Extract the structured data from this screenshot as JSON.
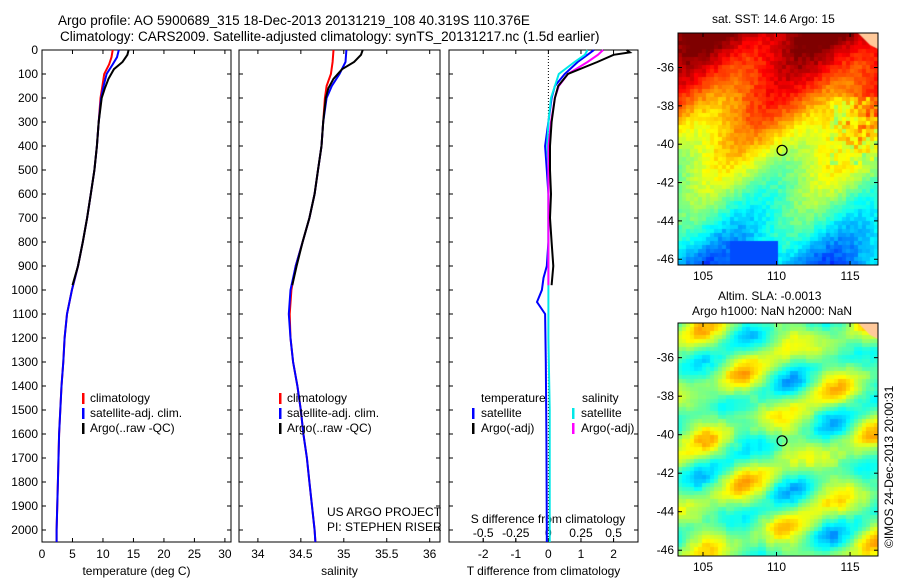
{
  "chart_data": {
    "title_line1": "Argo profile: AO 5900689_315 18-Dec-2013 20131219_108 40.319S 110.376E",
    "title_line2": "Climatology: CARS2009. Satellite-adjusted climatology: synTS_20131217.nc (1.5d earlier)",
    "depth_ticks": [
      0,
      100,
      200,
      300,
      400,
      500,
      600,
      700,
      800,
      900,
      1000,
      1100,
      1200,
      1300,
      1400,
      1500,
      1600,
      1700,
      1800,
      1900,
      2000
    ],
    "ylim": [
      0,
      2050
    ],
    "panels": [
      {
        "type": "line",
        "xlabel": "temperature (deg C)",
        "xlim": [
          0,
          31
        ],
        "xticks": [
          0,
          5,
          10,
          15,
          20,
          25,
          30
        ],
        "legend": [
          "climatology",
          "satellite-adj. clim.",
          "Argo(..raw -QC)"
        ],
        "series": [
          {
            "name": "climatology",
            "color": "#ff0000",
            "depth": [
              0,
              30,
              60,
              100,
              150,
              200,
              300,
              400,
              500,
              600,
              700,
              800,
              900,
              1000,
              1100,
              1200,
              1300,
              1400,
              1600,
              1800,
              2000,
              2050
            ],
            "values": [
              11.6,
              11.4,
              11.0,
              10.2,
              9.9,
              9.6,
              9.3,
              9.0,
              8.6,
              8.0,
              7.4,
              6.7,
              5.9,
              4.9,
              4.1,
              3.7,
              3.5,
              3.2,
              2.8,
              2.6,
              2.4,
              2.4
            ]
          },
          {
            "name": "satellite-adj. clim.",
            "color": "#0000ff",
            "depth": [
              0,
              30,
              60,
              100,
              150,
              200,
              300,
              400,
              500,
              600,
              700,
              800,
              900,
              1000,
              1100,
              1200,
              1300,
              1400,
              1600,
              1800,
              2000,
              2050
            ],
            "values": [
              12.6,
              12.3,
              11.6,
              10.6,
              10.1,
              9.7,
              9.3,
              9.0,
              8.6,
              8.0,
              7.4,
              6.7,
              5.9,
              4.9,
              4.1,
              3.7,
              3.5,
              3.2,
              2.8,
              2.6,
              2.4,
              2.4
            ]
          },
          {
            "name": "Argo(..raw -QC)",
            "color": "#000000",
            "depth": [
              0,
              20,
              50,
              80,
              120,
              160,
              200,
              300,
              400,
              500,
              600,
              700,
              800,
              900,
              980
            ],
            "values": [
              14.2,
              14.0,
              13.2,
              11.8,
              10.9,
              10.3,
              9.8,
              9.3,
              9.0,
              8.6,
              8.0,
              7.4,
              6.7,
              5.9,
              5.0
            ]
          }
        ]
      },
      {
        "type": "line",
        "xlabel": "salinity",
        "xlim": [
          33.78,
          36.12
        ],
        "xticks": [
          34,
          34.5,
          35,
          35.5,
          36
        ],
        "legend": [
          "climatology",
          "satellite-adj. clim.",
          "Argo(..raw -QC)"
        ],
        "annotation": [
          "US ARGO PROJECT",
          "PI: STEPHEN RISER"
        ],
        "series": [
          {
            "name": "climatology",
            "color": "#ff0000",
            "depth": [
              0,
              50,
              100,
              150,
              200,
              300,
              400,
              500,
              600,
              700,
              800,
              900,
              1000,
              1100,
              1200,
              1300,
              1400,
              1500,
              1600,
              1700,
              1800,
              1900,
              2000,
              2050
            ],
            "values": [
              34.88,
              34.87,
              34.85,
              34.8,
              34.78,
              34.76,
              34.74,
              34.7,
              34.66,
              34.6,
              34.52,
              34.44,
              34.39,
              34.37,
              34.38,
              34.41,
              34.46,
              34.5,
              34.53,
              34.57,
              34.6,
              34.63,
              34.66,
              34.67
            ]
          },
          {
            "name": "satellite-adj. clim.",
            "color": "#0000ff",
            "depth": [
              0,
              50,
              100,
              150,
              200,
              300,
              400,
              500,
              600,
              700,
              800,
              900,
              1000,
              1100,
              1200,
              1300,
              1400,
              1500,
              1600,
              1700,
              1800,
              1900,
              2000,
              2050
            ],
            "values": [
              35.03,
              35.02,
              34.95,
              34.86,
              34.8,
              34.76,
              34.74,
              34.7,
              34.66,
              34.6,
              34.52,
              34.44,
              34.38,
              34.36,
              34.38,
              34.41,
              34.46,
              34.5,
              34.53,
              34.57,
              34.6,
              34.63,
              34.66,
              34.67
            ]
          },
          {
            "name": "Argo(..raw -QC)",
            "color": "#000000",
            "depth": [
              0,
              20,
              50,
              80,
              120,
              160,
              200,
              300,
              400,
              500,
              600,
              700,
              800,
              900,
              980
            ],
            "values": [
              35.22,
              35.2,
              35.12,
              34.98,
              34.88,
              34.82,
              34.79,
              34.76,
              34.74,
              34.7,
              34.66,
              34.6,
              34.52,
              34.45,
              34.4
            ]
          }
        ]
      },
      {
        "type": "line",
        "xlabel": "T difference from climatology",
        "xlim": [
          -3.05,
          2.75
        ],
        "xticks": [
          -2,
          -1,
          0,
          1,
          2
        ],
        "s_label": "S difference from climatology",
        "s_ticks": [
          -0.5,
          -0.25,
          0,
          0.25,
          0.5
        ],
        "legend_headers": [
          "temperature",
          "salinity"
        ],
        "legend": [
          "satellite",
          "Argo(-adj)",
          "satellite",
          "Argo(-adj)"
        ],
        "series": [
          {
            "name": "T satellite",
            "unit": "T",
            "color": "#0000ff",
            "depth": [
              0,
              20,
              50,
              100,
              150,
              200,
              300,
              400,
              500,
              600,
              700,
              800,
              900,
              950,
              1000,
              1050,
              1100,
              1300,
              1600,
              2000,
              2050
            ],
            "values": [
              1.4,
              1.2,
              0.9,
              0.5,
              0.2,
              0.1,
              0.0,
              -0.1,
              -0.05,
              0,
              0,
              0,
              -0.05,
              -0.15,
              -0.2,
              -0.35,
              -0.1,
              -0.08,
              -0.06,
              -0.05,
              -0.05
            ]
          },
          {
            "name": "S satellite",
            "unit": "S",
            "color": "#00e8e8",
            "depth": [
              0,
              20,
              50,
              100,
              150,
              200,
              300,
              400,
              500,
              600,
              800,
              1000,
              1200,
              1500,
              1800,
              2000,
              2050
            ],
            "values": [
              0.3,
              0.28,
              0.2,
              0.08,
              0.05,
              0.02,
              0.0,
              -0.01,
              0,
              0,
              0,
              0,
              0,
              0.01,
              0.01,
              0.01,
              0.01
            ]
          },
          {
            "name": "S Argo(-adj)",
            "unit": "S",
            "color": "#ff00ff",
            "depth": [
              0,
              20,
              50,
              100,
              150,
              200,
              300,
              400,
              500,
              600,
              700,
              800,
              900,
              980
            ],
            "values": [
              0.42,
              0.38,
              0.3,
              0.15,
              0.08,
              0.05,
              0.02,
              0.0,
              0,
              0,
              0,
              0,
              0,
              0
            ]
          },
          {
            "name": "T Argo(-adj)",
            "unit": "T",
            "color": "#000000",
            "depth": [
              0,
              10,
              20,
              50,
              100,
              150,
              200,
              300,
              400,
              500,
              600,
              700,
              800,
              900,
              980
            ],
            "values": [
              2.4,
              2.5,
              2.0,
              1.5,
              0.6,
              0.3,
              0.2,
              0.1,
              0.05,
              0.05,
              0.08,
              0.05,
              0.1,
              0.15,
              0.1
            ]
          }
        ]
      }
    ],
    "maps": [
      {
        "type": "heatmap",
        "title": "sat. SST: 14.6 Argo: 15",
        "variable": "SST",
        "xlim": [
          103.3,
          116.9
        ],
        "ylim": [
          -46.3,
          -34.2
        ],
        "xticks": [
          105,
          110,
          115
        ],
        "yticks": [
          -36,
          -38,
          -40,
          -42,
          -44,
          -46
        ],
        "marker": {
          "lon": 110.376,
          "lat": -40.319
        }
      },
      {
        "type": "heatmap",
        "title_line1": "Altim. SLA: -0.0013",
        "title_line2": "Argo h1000: NaN h2000: NaN",
        "variable": "SLA",
        "xlim": [
          103.3,
          116.9
        ],
        "ylim": [
          -46.3,
          -34.2
        ],
        "xticks": [
          105,
          110,
          115
        ],
        "yticks": [
          -36,
          -38,
          -40,
          -42,
          -44,
          -46
        ],
        "marker": {
          "lon": 110.376,
          "lat": -40.319
        }
      }
    ],
    "credit": "©IMOS 24-Dec-2013 20:00:31"
  }
}
